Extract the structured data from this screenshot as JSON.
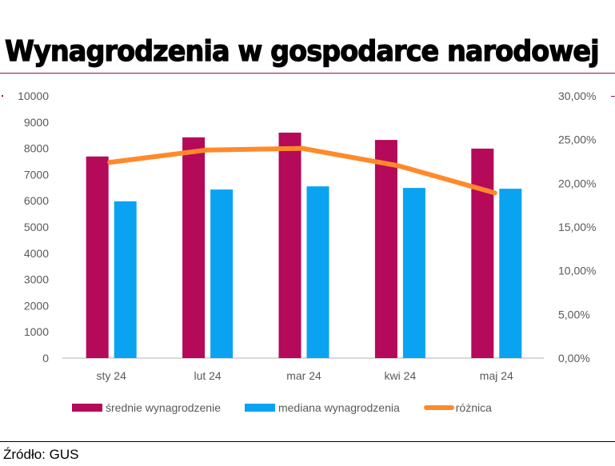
{
  "header": {
    "title": "Wynagrodzenia w gospodarce narodowej"
  },
  "footer": {
    "source": "Źródło: GUS"
  },
  "colors": {
    "mean": "#b5095a",
    "median": "#0aa3f2",
    "diff": "#ff8a2b",
    "axis_text": "#595959",
    "axis_line": "#d9d9d9"
  },
  "chart_data": {
    "type": "bar",
    "title": "Wynagrodzenia w gospodarce narodowej",
    "categories": [
      "sty 24",
      "lut 24",
      "mar 24",
      "kwi 24",
      "maj 24"
    ],
    "series": [
      {
        "name": "średnie wynagrodzenie",
        "type": "bar",
        "axis": "left",
        "values": [
          7690,
          8420,
          8600,
          8320,
          7990
        ]
      },
      {
        "name": "mediana wynagrodzenia",
        "type": "bar",
        "axis": "left",
        "values": [
          5980,
          6430,
          6550,
          6490,
          6460
        ]
      },
      {
        "name": "różnica",
        "type": "line",
        "axis": "right",
        "values": [
          22.4,
          23.8,
          24.0,
          22.0,
          18.9
        ]
      }
    ],
    "y_left": {
      "range": [
        0,
        10000
      ],
      "ticks": [
        "0",
        "1000",
        "2000",
        "3000",
        "4000",
        "5000",
        "6000",
        "7000",
        "8000",
        "9000",
        "10000"
      ]
    },
    "y_right": {
      "range": [
        0,
        30
      ],
      "ticks": [
        "0,00%",
        "5,00%",
        "10,00%",
        "15,00%",
        "20,00%",
        "25,00%",
        "30,00%"
      ]
    },
    "xlabel": "",
    "ylabel": "",
    "grid": false,
    "legend": "bottom"
  }
}
